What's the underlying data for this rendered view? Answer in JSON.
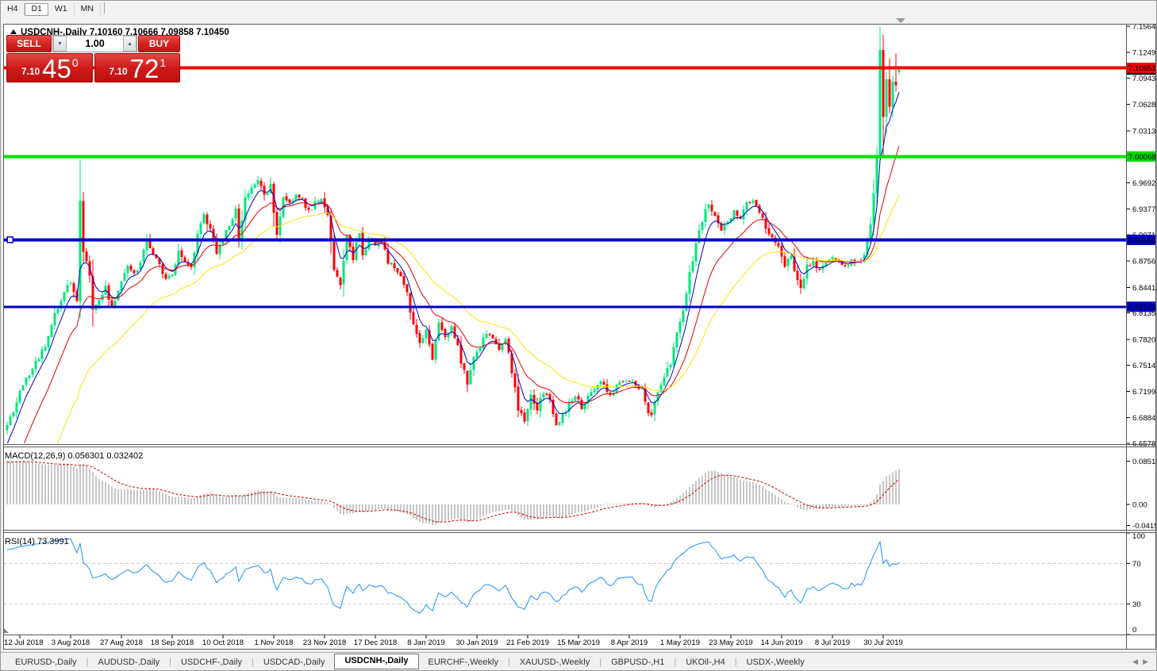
{
  "toolbar": {
    "timeframes": [
      {
        "label": "H4",
        "active": false
      },
      {
        "label": "D1",
        "active": true
      },
      {
        "label": "W1",
        "active": false
      },
      {
        "label": "MN",
        "active": false
      }
    ]
  },
  "chart": {
    "title": "USDCNH-,Daily  7.10160 7.10666 7.09858 7.10450",
    "symbol": "USDCNH-,Daily",
    "ohlc_text": "7.10160 7.10666 7.09858 7.10450",
    "trade_panel": {
      "sell_label": "SELL",
      "buy_label": "BUY",
      "volume": "1.00",
      "sell_price_small": "7.10",
      "sell_price_big": "45",
      "sell_price_sup": "0",
      "buy_price_small": "7.10",
      "buy_price_big": "72",
      "buy_price_sup": "1"
    }
  },
  "chart_data": {
    "type": "candlestick",
    "symbol": "USDCNH",
    "timeframe": "Daily",
    "last_ohlc": {
      "open": 7.1016,
      "high": 7.10666,
      "low": 7.09858,
      "close": 7.1045
    },
    "candle_up_color": "#00E67D",
    "candle_down_color": "#FF0000",
    "price_axis": {
      "ticks": [
        7.1564,
        7.1249,
        7.0943,
        7.0628,
        7.0313,
        6.9692,
        6.9377,
        6.9071,
        6.8756,
        6.8441,
        6.8135,
        6.782,
        6.7514,
        6.7199,
        6.6884,
        6.6578
      ]
    },
    "bid": {
      "price": 7.1045,
      "label_bg": "#000000",
      "label_fg": "#ffffff"
    },
    "hlines": [
      {
        "price": 7.10651,
        "color": "#FF0000",
        "width": 4,
        "label_bg": "#EE0000",
        "label_fg": "#ffffff"
      },
      {
        "price": 7.00068,
        "color": "#00E400",
        "width": 4,
        "label_bg": "#00D800",
        "label_fg": "#000000"
      },
      {
        "price": 6.901,
        "color": "#0000C8",
        "width": 4,
        "label_bg": "#0000C8",
        "label_fg": "#ffffff",
        "handle": true
      },
      {
        "price": 6.82103,
        "color": "#0000C8",
        "width": 3,
        "label_bg": "#0000C8",
        "label_fg": "#ffffff"
      }
    ],
    "x_labels": [
      "12 Jul 2018",
      "3 Aug 2018",
      "27 Aug 2018",
      "18 Sep 2018",
      "10 Oct 2018",
      "1 Nov 2018",
      "23 Nov 2018",
      "17 Dec 2018",
      "8 Jan 2019",
      "30 Jan 2019",
      "21 Feb 2019",
      "15 Mar 2019",
      "8 Apr 2019",
      "1 May 2019",
      "23 May 2019",
      "14 Jun 2019",
      "8 Jul 2019",
      "30 Jul 2019"
    ],
    "bars_total": 282,
    "close_anchors": [
      [
        0,
        6.68
      ],
      [
        2,
        6.695
      ],
      [
        4,
        6.72
      ],
      [
        6,
        6.735
      ],
      [
        9,
        6.755
      ],
      [
        12,
        6.775
      ],
      [
        15,
        6.81
      ],
      [
        18,
        6.84
      ],
      [
        20,
        6.85
      ],
      [
        22,
        6.83
      ],
      [
        23,
        6.95
      ],
      [
        24,
        6.885
      ],
      [
        26,
        6.86
      ],
      [
        27,
        6.815
      ],
      [
        29,
        6.83
      ],
      [
        31,
        6.845
      ],
      [
        33,
        6.82
      ],
      [
        36,
        6.85
      ],
      [
        38,
        6.87
      ],
      [
        40,
        6.86
      ],
      [
        42,
        6.875
      ],
      [
        44,
        6.9
      ],
      [
        46,
        6.885
      ],
      [
        48,
        6.87
      ],
      [
        50,
        6.855
      ],
      [
        52,
        6.86
      ],
      [
        54,
        6.885
      ],
      [
        56,
        6.875
      ],
      [
        58,
        6.87
      ],
      [
        60,
        6.905
      ],
      [
        62,
        6.93
      ],
      [
        64,
        6.915
      ],
      [
        66,
        6.885
      ],
      [
        68,
        6.9
      ],
      [
        70,
        6.92
      ],
      [
        72,
        6.935
      ],
      [
        73,
        6.9
      ],
      [
        75,
        6.95
      ],
      [
        77,
        6.965
      ],
      [
        79,
        6.975
      ],
      [
        81,
        6.955
      ],
      [
        83,
        6.965
      ],
      [
        84,
        6.935
      ],
      [
        85,
        6.91
      ],
      [
        87,
        6.955
      ],
      [
        89,
        6.945
      ],
      [
        91,
        6.955
      ],
      [
        93,
        6.95
      ],
      [
        95,
        6.935
      ],
      [
        97,
        6.945
      ],
      [
        99,
        6.95
      ],
      [
        101,
        6.93
      ],
      [
        103,
        6.865
      ],
      [
        105,
        6.845
      ],
      [
        107,
        6.905
      ],
      [
        109,
        6.88
      ],
      [
        111,
        6.91
      ],
      [
        112,
        6.885
      ],
      [
        114,
        6.9
      ],
      [
        116,
        6.895
      ],
      [
        118,
        6.9
      ],
      [
        120,
        6.875
      ],
      [
        122,
        6.87
      ],
      [
        124,
        6.855
      ],
      [
        126,
        6.835
      ],
      [
        128,
        6.8
      ],
      [
        130,
        6.775
      ],
      [
        132,
        6.795
      ],
      [
        134,
        6.76
      ],
      [
        136,
        6.8
      ],
      [
        138,
        6.785
      ],
      [
        140,
        6.8
      ],
      [
        142,
        6.775
      ],
      [
        143,
        6.755
      ],
      [
        145,
        6.73
      ],
      [
        147,
        6.76
      ],
      [
        149,
        6.775
      ],
      [
        151,
        6.79
      ],
      [
        153,
        6.78
      ],
      [
        155,
        6.77
      ],
      [
        157,
        6.785
      ],
      [
        159,
        6.745
      ],
      [
        161,
        6.7
      ],
      [
        163,
        6.685
      ],
      [
        165,
        6.715
      ],
      [
        167,
        6.7
      ],
      [
        169,
        6.72
      ],
      [
        171,
        6.71
      ],
      [
        173,
        6.68
      ],
      [
        175,
        6.69
      ],
      [
        177,
        6.705
      ],
      [
        179,
        6.715
      ],
      [
        181,
        6.7
      ],
      [
        184,
        6.72
      ],
      [
        187,
        6.73
      ],
      [
        190,
        6.715
      ],
      [
        193,
        6.73
      ],
      [
        196,
        6.735
      ],
      [
        198,
        6.725
      ],
      [
        200,
        6.72
      ],
      [
        202,
        6.695
      ],
      [
        203,
        6.69
      ],
      [
        205,
        6.72
      ],
      [
        207,
        6.735
      ],
      [
        209,
        6.755
      ],
      [
        211,
        6.79
      ],
      [
        213,
        6.815
      ],
      [
        215,
        6.86
      ],
      [
        217,
        6.895
      ],
      [
        219,
        6.925
      ],
      [
        221,
        6.945
      ],
      [
        223,
        6.93
      ],
      [
        225,
        6.915
      ],
      [
        227,
        6.925
      ],
      [
        229,
        6.935
      ],
      [
        231,
        6.925
      ],
      [
        233,
        6.945
      ],
      [
        235,
        6.945
      ],
      [
        237,
        6.935
      ],
      [
        239,
        6.915
      ],
      [
        241,
        6.905
      ],
      [
        243,
        6.895
      ],
      [
        245,
        6.87
      ],
      [
        247,
        6.88
      ],
      [
        249,
        6.855
      ],
      [
        250,
        6.84
      ],
      [
        252,
        6.87
      ],
      [
        254,
        6.875
      ],
      [
        256,
        6.865
      ],
      [
        258,
        6.875
      ],
      [
        260,
        6.88
      ],
      [
        262,
        6.875
      ],
      [
        264,
        6.87
      ],
      [
        266,
        6.875
      ],
      [
        268,
        6.875
      ],
      [
        270,
        6.88
      ],
      [
        272,
        6.92
      ],
      [
        274,
        7.0
      ]
    ],
    "tail_ohlc": [
      [
        275,
        7.0,
        7.156,
        6.993,
        7.128
      ],
      [
        276,
        7.128,
        7.146,
        7.001,
        7.048
      ],
      [
        277,
        7.048,
        7.102,
        7.028,
        7.093
      ],
      [
        278,
        7.093,
        7.118,
        7.052,
        7.06
      ],
      [
        279,
        7.06,
        7.097,
        7.048,
        7.09
      ],
      [
        280,
        7.09,
        7.124,
        7.078,
        7.086
      ],
      [
        281,
        7.1016,
        7.10666,
        7.09858,
        7.1045
      ]
    ],
    "ma_lines": [
      {
        "name": "ma-fast-blue",
        "color": "#0000CC",
        "alpha": 0.3
      },
      {
        "name": "ma-mid-red",
        "color": "#E00000",
        "alpha": 0.12
      },
      {
        "name": "ma-slow-yellow",
        "color": "#FFE400",
        "alpha": 0.055
      }
    ],
    "macd": {
      "label": "MACD(12,26,9)",
      "value_main": "0.056301",
      "value_signal": "0.032402",
      "label_full": "MACD(12,26,9) 0.056301 0.032402",
      "axis_max_text": "0.085164",
      "axis_zero_text": "0.00",
      "axis_min_text": "-0.041595",
      "axis_max": 0.085164,
      "axis_min": -0.041595,
      "hist_color": "#c6c6c6",
      "signal_color": "#CC0000"
    },
    "rsi": {
      "label": "RSI(14)",
      "value": "73.3991",
      "label_full": "RSI(14) 73.3991",
      "axis_labels": [
        100,
        70,
        30,
        0
      ],
      "levels": [
        70,
        30
      ],
      "color": "#1E90FF"
    }
  },
  "tabs": {
    "items": [
      {
        "label": "EURUSD-,Daily",
        "active": false
      },
      {
        "label": "AUDUSD-,Daily",
        "active": false
      },
      {
        "label": "USDCHF-,Daily",
        "active": false
      },
      {
        "label": "USDCAD-,Daily",
        "active": false
      },
      {
        "label": "USDCNH-,Daily",
        "active": true
      },
      {
        "label": "EURCHF-,Weekly",
        "active": false
      },
      {
        "label": "XAUUSD-,Weekly",
        "active": false
      },
      {
        "label": "GBPUSD-,H1",
        "active": false
      },
      {
        "label": "UKOil-,H4",
        "active": false
      },
      {
        "label": "USDX-,Weekly",
        "active": false
      }
    ],
    "scroll_left": "◀",
    "scroll_right": "▶"
  }
}
